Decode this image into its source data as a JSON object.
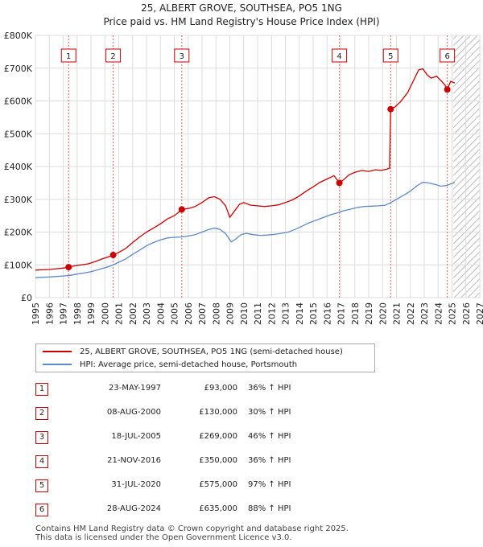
{
  "chart_data": {
    "type": "line",
    "title": "25, ALBERT GROVE, SOUTHSEA, PO5 1NG",
    "subtitle": "Price paid vs. HM Land Registry's House Price Index (HPI)",
    "x_ticks": [
      "1995",
      "1996",
      "1997",
      "1998",
      "1999",
      "2000",
      "2001",
      "2002",
      "2003",
      "2004",
      "2005",
      "2006",
      "2007",
      "2008",
      "2009",
      "2010",
      "2011",
      "2012",
      "2013",
      "2014",
      "2015",
      "2016",
      "2017",
      "2018",
      "2019",
      "2020",
      "2021",
      "2022",
      "2023",
      "2024",
      "2025",
      "2026",
      "2027"
    ],
    "xlim": [
      1995,
      2027
    ],
    "y_ticks": [
      "£0",
      "£100K",
      "£200K",
      "£300K",
      "£400K",
      "£500K",
      "£600K",
      "£700K",
      "£800K"
    ],
    "ylim": [
      0,
      800000
    ],
    "forecast_start": 2025.1,
    "series": [
      {
        "name": "25, ALBERT GROVE, SOUTHSEA, PO5 1NG (semi-detached house)",
        "color": "#cc0000",
        "points": [
          [
            1995.0,
            84000
          ],
          [
            1995.5,
            85000
          ],
          [
            1996.0,
            86000
          ],
          [
            1996.5,
            88000
          ],
          [
            1997.0,
            90000
          ],
          [
            1997.39,
            93000
          ],
          [
            1997.8,
            97000
          ],
          [
            1998.3,
            100000
          ],
          [
            1998.8,
            103000
          ],
          [
            1999.3,
            110000
          ],
          [
            1999.8,
            118000
          ],
          [
            2000.3,
            125000
          ],
          [
            2000.6,
            130000
          ],
          [
            2001.0,
            138000
          ],
          [
            2001.5,
            150000
          ],
          [
            2002.0,
            168000
          ],
          [
            2002.5,
            185000
          ],
          [
            2003.0,
            200000
          ],
          [
            2003.5,
            212000
          ],
          [
            2004.0,
            225000
          ],
          [
            2004.5,
            240000
          ],
          [
            2005.0,
            250000
          ],
          [
            2005.3,
            260000
          ],
          [
            2005.54,
            269000
          ],
          [
            2006.0,
            272000
          ],
          [
            2006.5,
            278000
          ],
          [
            2007.0,
            290000
          ],
          [
            2007.5,
            305000
          ],
          [
            2007.9,
            308000
          ],
          [
            2008.3,
            300000
          ],
          [
            2008.7,
            280000
          ],
          [
            2009.0,
            245000
          ],
          [
            2009.3,
            262000
          ],
          [
            2009.7,
            285000
          ],
          [
            2010.0,
            290000
          ],
          [
            2010.5,
            282000
          ],
          [
            2011.0,
            280000
          ],
          [
            2011.5,
            278000
          ],
          [
            2012.0,
            280000
          ],
          [
            2012.5,
            283000
          ],
          [
            2013.0,
            290000
          ],
          [
            2013.5,
            298000
          ],
          [
            2014.0,
            310000
          ],
          [
            2014.5,
            325000
          ],
          [
            2015.0,
            338000
          ],
          [
            2015.5,
            352000
          ],
          [
            2016.0,
            362000
          ],
          [
            2016.5,
            372000
          ],
          [
            2016.89,
            350000
          ],
          [
            2017.2,
            360000
          ],
          [
            2017.6,
            375000
          ],
          [
            2018.0,
            382000
          ],
          [
            2018.5,
            388000
          ],
          [
            2019.0,
            385000
          ],
          [
            2019.5,
            390000
          ],
          [
            2019.9,
            388000
          ],
          [
            2020.3,
            392000
          ],
          [
            2020.5,
            395000
          ],
          [
            2020.58,
            575000
          ],
          [
            2020.9,
            582000
          ],
          [
            2021.3,
            598000
          ],
          [
            2021.8,
            625000
          ],
          [
            2022.2,
            660000
          ],
          [
            2022.6,
            695000
          ],
          [
            2022.9,
            698000
          ],
          [
            2023.2,
            680000
          ],
          [
            2023.5,
            670000
          ],
          [
            2023.9,
            675000
          ],
          [
            2024.2,
            662000
          ],
          [
            2024.5,
            648000
          ],
          [
            2024.66,
            635000
          ],
          [
            2024.9,
            660000
          ],
          [
            2025.2,
            655000
          ]
        ]
      },
      {
        "name": "HPI: Average price, semi-detached house, Portsmouth",
        "color": "#5b8ac7",
        "points": [
          [
            1995.0,
            61000
          ],
          [
            1995.5,
            62000
          ],
          [
            1996.0,
            63000
          ],
          [
            1996.5,
            64500
          ],
          [
            1997.0,
            66000
          ],
          [
            1997.5,
            68000
          ],
          [
            1998.0,
            72000
          ],
          [
            1998.5,
            75000
          ],
          [
            1999.0,
            79000
          ],
          [
            1999.5,
            85000
          ],
          [
            2000.0,
            91000
          ],
          [
            2000.5,
            98000
          ],
          [
            2001.0,
            108000
          ],
          [
            2001.5,
            118000
          ],
          [
            2002.0,
            132000
          ],
          [
            2002.5,
            145000
          ],
          [
            2003.0,
            158000
          ],
          [
            2003.5,
            168000
          ],
          [
            2004.0,
            176000
          ],
          [
            2004.5,
            182000
          ],
          [
            2005.0,
            184000
          ],
          [
            2005.5,
            185000
          ],
          [
            2006.0,
            188000
          ],
          [
            2006.5,
            192000
          ],
          [
            2007.0,
            200000
          ],
          [
            2007.5,
            208000
          ],
          [
            2007.9,
            212000
          ],
          [
            2008.3,
            208000
          ],
          [
            2008.7,
            195000
          ],
          [
            2009.1,
            170000
          ],
          [
            2009.4,
            178000
          ],
          [
            2009.8,
            192000
          ],
          [
            2010.2,
            196000
          ],
          [
            2010.7,
            192000
          ],
          [
            2011.2,
            190000
          ],
          [
            2011.7,
            191000
          ],
          [
            2012.2,
            193000
          ],
          [
            2012.7,
            196000
          ],
          [
            2013.2,
            200000
          ],
          [
            2013.7,
            208000
          ],
          [
            2014.2,
            218000
          ],
          [
            2014.7,
            228000
          ],
          [
            2015.2,
            236000
          ],
          [
            2015.7,
            244000
          ],
          [
            2016.2,
            252000
          ],
          [
            2016.7,
            258000
          ],
          [
            2017.2,
            265000
          ],
          [
            2017.7,
            270000
          ],
          [
            2018.2,
            275000
          ],
          [
            2018.7,
            278000
          ],
          [
            2019.2,
            279000
          ],
          [
            2019.7,
            280000
          ],
          [
            2020.2,
            282000
          ],
          [
            2020.6,
            290000
          ],
          [
            2021.0,
            300000
          ],
          [
            2021.5,
            312000
          ],
          [
            2022.0,
            325000
          ],
          [
            2022.5,
            342000
          ],
          [
            2022.9,
            352000
          ],
          [
            2023.3,
            350000
          ],
          [
            2023.8,
            345000
          ],
          [
            2024.2,
            340000
          ],
          [
            2024.6,
            342000
          ],
          [
            2025.0,
            348000
          ],
          [
            2025.2,
            352000
          ]
        ]
      }
    ],
    "sales": [
      {
        "num": "1",
        "date": "23-MAY-1997",
        "price": "£93,000",
        "hpi": "36% ↑ HPI",
        "x": 1997.39,
        "y": 93000
      },
      {
        "num": "2",
        "date": "08-AUG-2000",
        "price": "£130,000",
        "hpi": "30% ↑ HPI",
        "x": 2000.6,
        "y": 130000
      },
      {
        "num": "3",
        "date": "18-JUL-2005",
        "price": "£269,000",
        "hpi": "46% ↑ HPI",
        "x": 2005.54,
        "y": 269000
      },
      {
        "num": "4",
        "date": "21-NOV-2016",
        "price": "£350,000",
        "hpi": "36% ↑ HPI",
        "x": 2016.89,
        "y": 350000
      },
      {
        "num": "5",
        "date": "31-JUL-2020",
        "price": "£575,000",
        "hpi": "97% ↑ HPI",
        "x": 2020.58,
        "y": 575000
      },
      {
        "num": "6",
        "date": "28-AUG-2024",
        "price": "£635,000",
        "hpi": "88% ↑ HPI",
        "x": 2024.66,
        "y": 635000
      }
    ]
  },
  "legend": {
    "red_label": "25, ALBERT GROVE, SOUTHSEA, PO5 1NG (semi-detached house)",
    "blue_label": "HPI: Average price, semi-detached house, Portsmouth"
  },
  "footer": {
    "line1": "Contains HM Land Registry data © Crown copyright and database right 2025.",
    "line2": "This data is licensed under the Open Government Licence v3.0."
  }
}
